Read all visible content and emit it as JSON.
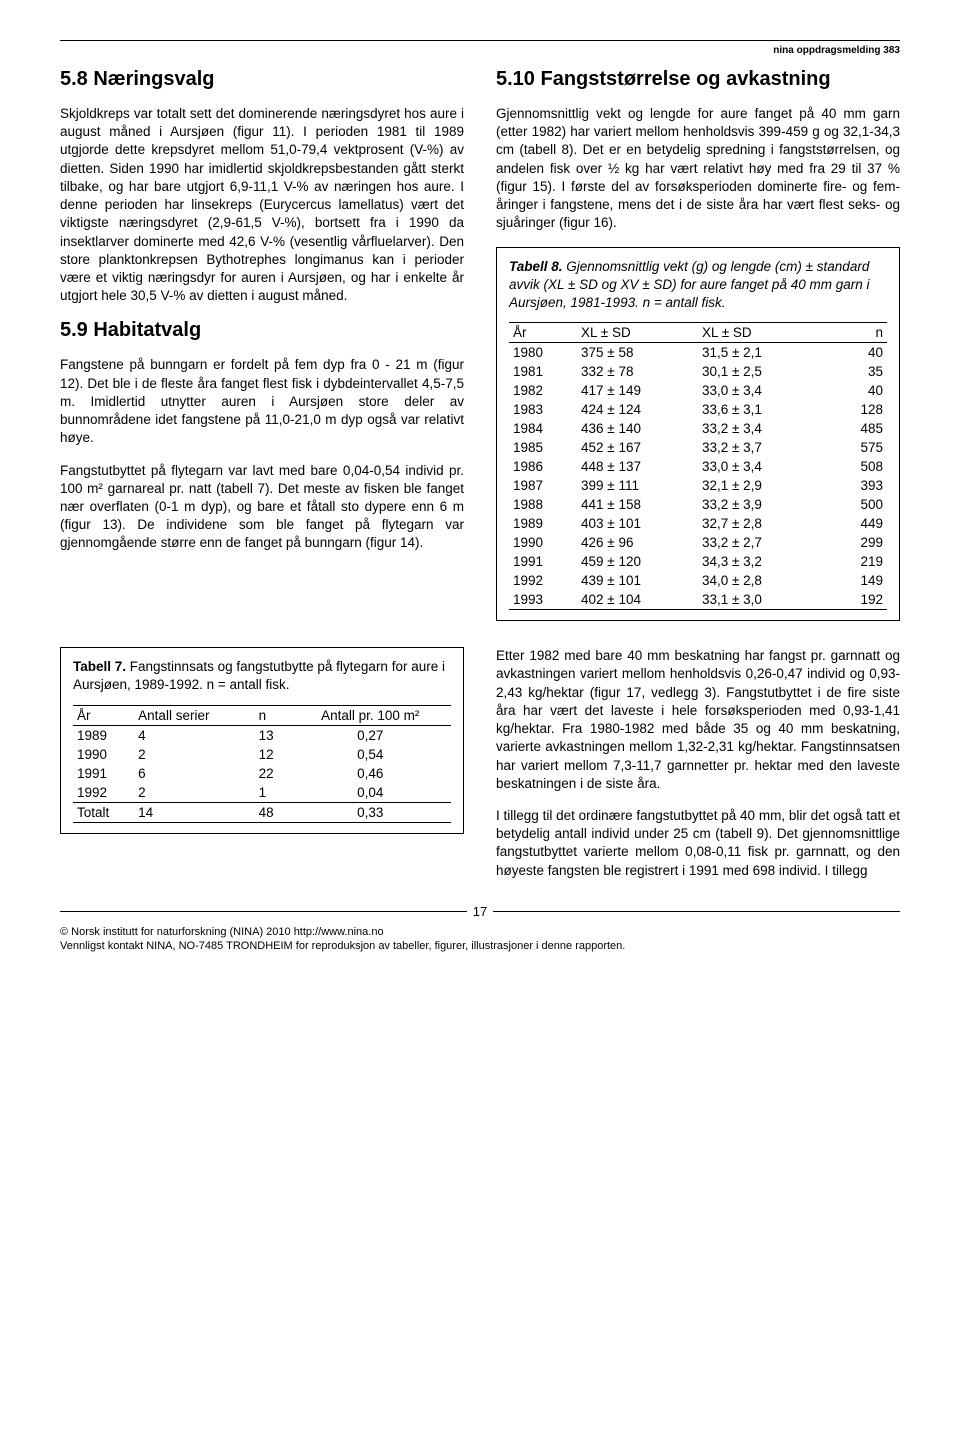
{
  "report_label": "nina oppdragsmelding 383",
  "left": {
    "h58": "5.8 Næringsvalg",
    "p58": "Skjoldkreps var totalt sett det dominerende næringsdyret hos aure i august måned i Aursjøen (figur 11). I perioden 1981 til 1989 utgjorde dette krepsdyret mellom 51,0-79,4 vektprosent (V-%) av dietten. Siden 1990 har imidlertid skjoldkrepsbestanden gått sterkt tilbake, og har bare utgjort 6,9-11,1 V-% av næringen hos aure. I denne perioden har linsekreps (Eurycercus lamellatus) vært det viktigste næringsdyret (2,9-61,5 V-%), bortsett fra i 1990 da insektlarver dominerte med 42,6 V-% (vesentlig vårfluelarver). Den store planktonkrepsen Bythotrephes longimanus kan i perioder være et viktig næringsdyr for auren i Aursjøen, og har i enkelte år utgjort hele 30,5 V-% av dietten i august måned.",
    "h59": "5.9 Habitatvalg",
    "p59a": "Fangstene på bunngarn er fordelt på fem dyp fra 0 - 21 m (figur 12). Det ble i de fleste åra fanget flest fisk i dybdeintervallet 4,5-7,5 m. Imidlertid utnytter auren i Aursjøen store deler av bunnområdene idet fangstene på 11,0-21,0 m dyp også var relativt høye.",
    "p59b": "Fangstutbyttet på flytegarn var lavt med bare 0,04-0,54 individ pr. 100 m² garnareal pr. natt (tabell 7). Det meste av fisken ble fanget nær overflaten (0-1 m dyp), og bare et fåtall sto dypere enn 6 m (figur 13). De individene som ble fanget på flytegarn var gjennomgående større enn de fanget på bunngarn (figur 14)."
  },
  "right": {
    "h510": "5.10 Fangststørrelse og avkastning",
    "p510a": "Gjennomsnittlig vekt og lengde for aure fanget på 40 mm garn (etter 1982) har variert mellom henholdsvis 399-459 g og 32,1-34,3 cm (tabell 8). Det er en betydelig spredning i fangststørrelsen, og andelen fisk over ½ kg har vært relativt høy med fra 29 til 37 % (figur 15). I første del av forsøksperioden dominerte fire- og fem-åringer i fangstene, mens det i de siste åra har vært flest seks- og sjuåringer (figur 16).",
    "p510b": "Etter 1982 med bare 40 mm beskatning har fangst pr. garnnatt og avkastningen variert mellom henholdsvis 0,26-0,47 individ og 0,93-2,43 kg/hektar (figur 17, vedlegg 3). Fangstutbyttet i de fire siste åra har vært det laveste i hele forsøksperioden med 0,93-1,41 kg/hektar. Fra 1980-1982 med både 35 og 40 mm beskatning, varierte avkastningen mellom 1,32-2,31 kg/hektar. Fangstinnsatsen har variert mellom 7,3-11,7 garnnetter pr. hektar med den laveste beskatningen i de siste åra.",
    "p510c": "I tillegg til det ordinære fangstutbyttet på 40 mm, blir det også tatt et betydelig antall individ under 25 cm (tabell 9). Det gjennomsnittlige fangstutbyttet varierte mellom 0,08-0,11 fisk pr. garnnatt, og den høyeste fangsten ble registrert i 1991 med 698 individ. I tillegg"
  },
  "table7": {
    "caption_bold": "Tabell 7.",
    "caption_rest": " Fangstinnsats og fangstutbytte på flytegarn for aure i Aursjøen, 1989-1992.  n = antall fisk.",
    "headers": [
      "År",
      "Antall serier",
      "n",
      "Antall pr. 100 m²"
    ],
    "rows": [
      [
        "1989",
        "4",
        "13",
        "0,27"
      ],
      [
        "1990",
        "2",
        "12",
        "0,54"
      ],
      [
        "1991",
        "6",
        "22",
        "0,46"
      ],
      [
        "1992",
        "2",
        "1",
        "0,04"
      ]
    ],
    "total": [
      "Totalt",
      "14",
      "48",
      "0,33"
    ]
  },
  "table8": {
    "caption_bold": "Tabell 8.",
    "caption_rest": " Gjennomsnittlig vekt (g) og lengde (cm) ± standard avvik (XL ± SD og XV ± SD) for aure fanget på 40 mm garn i Aursjøen, 1981-1993. n = antall fisk.",
    "headers": [
      "År",
      "XL ± SD",
      "XL ± SD",
      "n"
    ],
    "rows": [
      [
        "1980",
        "375 ±  58",
        "31,5 ± 2,1",
        "40"
      ],
      [
        "1981",
        "332 ±  78",
        "30,1 ± 2,5",
        "35"
      ],
      [
        "1982",
        "417 ± 149",
        "33,0 ± 3,4",
        "40"
      ],
      [
        "1983",
        "424 ± 124",
        "33,6 ± 3,1",
        "128"
      ],
      [
        "1984",
        "436 ± 140",
        "33,2 ± 3,4",
        "485"
      ],
      [
        "1985",
        "452 ± 167",
        "33,2 ± 3,7",
        "575"
      ],
      [
        "1986",
        "448 ± 137",
        "33,0 ± 3,4",
        "508"
      ],
      [
        "1987",
        "399 ± 111",
        "32,1 ± 2,9",
        "393"
      ],
      [
        "1988",
        "441 ± 158",
        "33,2 ± 3,9",
        "500"
      ],
      [
        "1989",
        "403 ± 101",
        "32,7 ± 2,8",
        "449"
      ],
      [
        "1990",
        "426 ±  96",
        "33,2 ± 2,7",
        "299"
      ],
      [
        "1991",
        "459 ± 120",
        "34,3 ± 3,2",
        "219"
      ],
      [
        "1992",
        "439 ± 101",
        "34,0 ± 2,8",
        "149"
      ],
      [
        "1993",
        "402 ± 104",
        "33,1 ± 3,0",
        "192"
      ]
    ]
  },
  "page_number": "17",
  "footer1": "© Norsk institutt for naturforskning (NINA) 2010 http://www.nina.no",
  "footer2": "Vennligst kontakt NINA, NO-7485 TRONDHEIM for reproduksjon av tabeller, figurer, illustrasjoner i denne rapporten."
}
